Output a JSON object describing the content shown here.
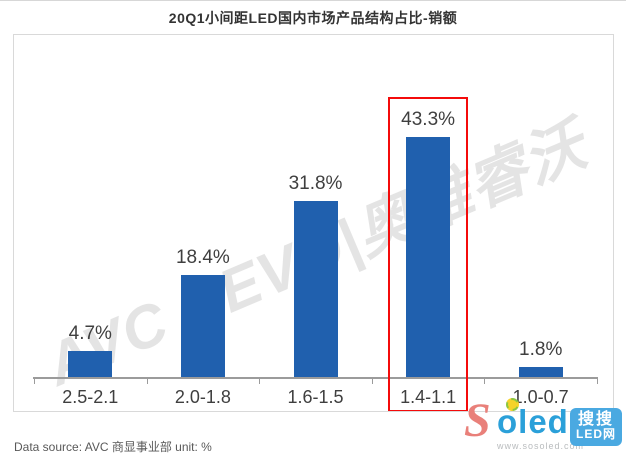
{
  "title": "20Q1小间距LED国内市场产品结构占比-销额",
  "chart_data": {
    "type": "bar",
    "title": "20Q1小间距LED国内市场产品结构占比-销额",
    "categories": [
      "2.5-2.1",
      "2.0-1.8",
      "1.6-1.5",
      "1.4-1.1",
      "1.0-0.7"
    ],
    "values": [
      4.7,
      18.4,
      31.8,
      43.3,
      1.8
    ],
    "value_labels": [
      "4.7%",
      "18.4%",
      "31.8%",
      "43.3%",
      "1.8%"
    ],
    "unit": "%",
    "xlabel": "",
    "ylabel": "",
    "ylim": [
      0,
      50
    ],
    "grid": false,
    "legend": "none",
    "bar_color": "#2060ae",
    "axis_color": "#9b9b9b",
    "highlight_index": 3,
    "highlight_color": "#f40b0b"
  },
  "watermark": "AVC REVO|奥维睿沃",
  "footer": {
    "text": "Data source: AVC 商显事业部 unit: %"
  },
  "logo": {
    "s": "S",
    "oled": "oled",
    "url": "www.sosoled.com",
    "badge_line1": "搜搜",
    "badge_line2": "LED网"
  }
}
